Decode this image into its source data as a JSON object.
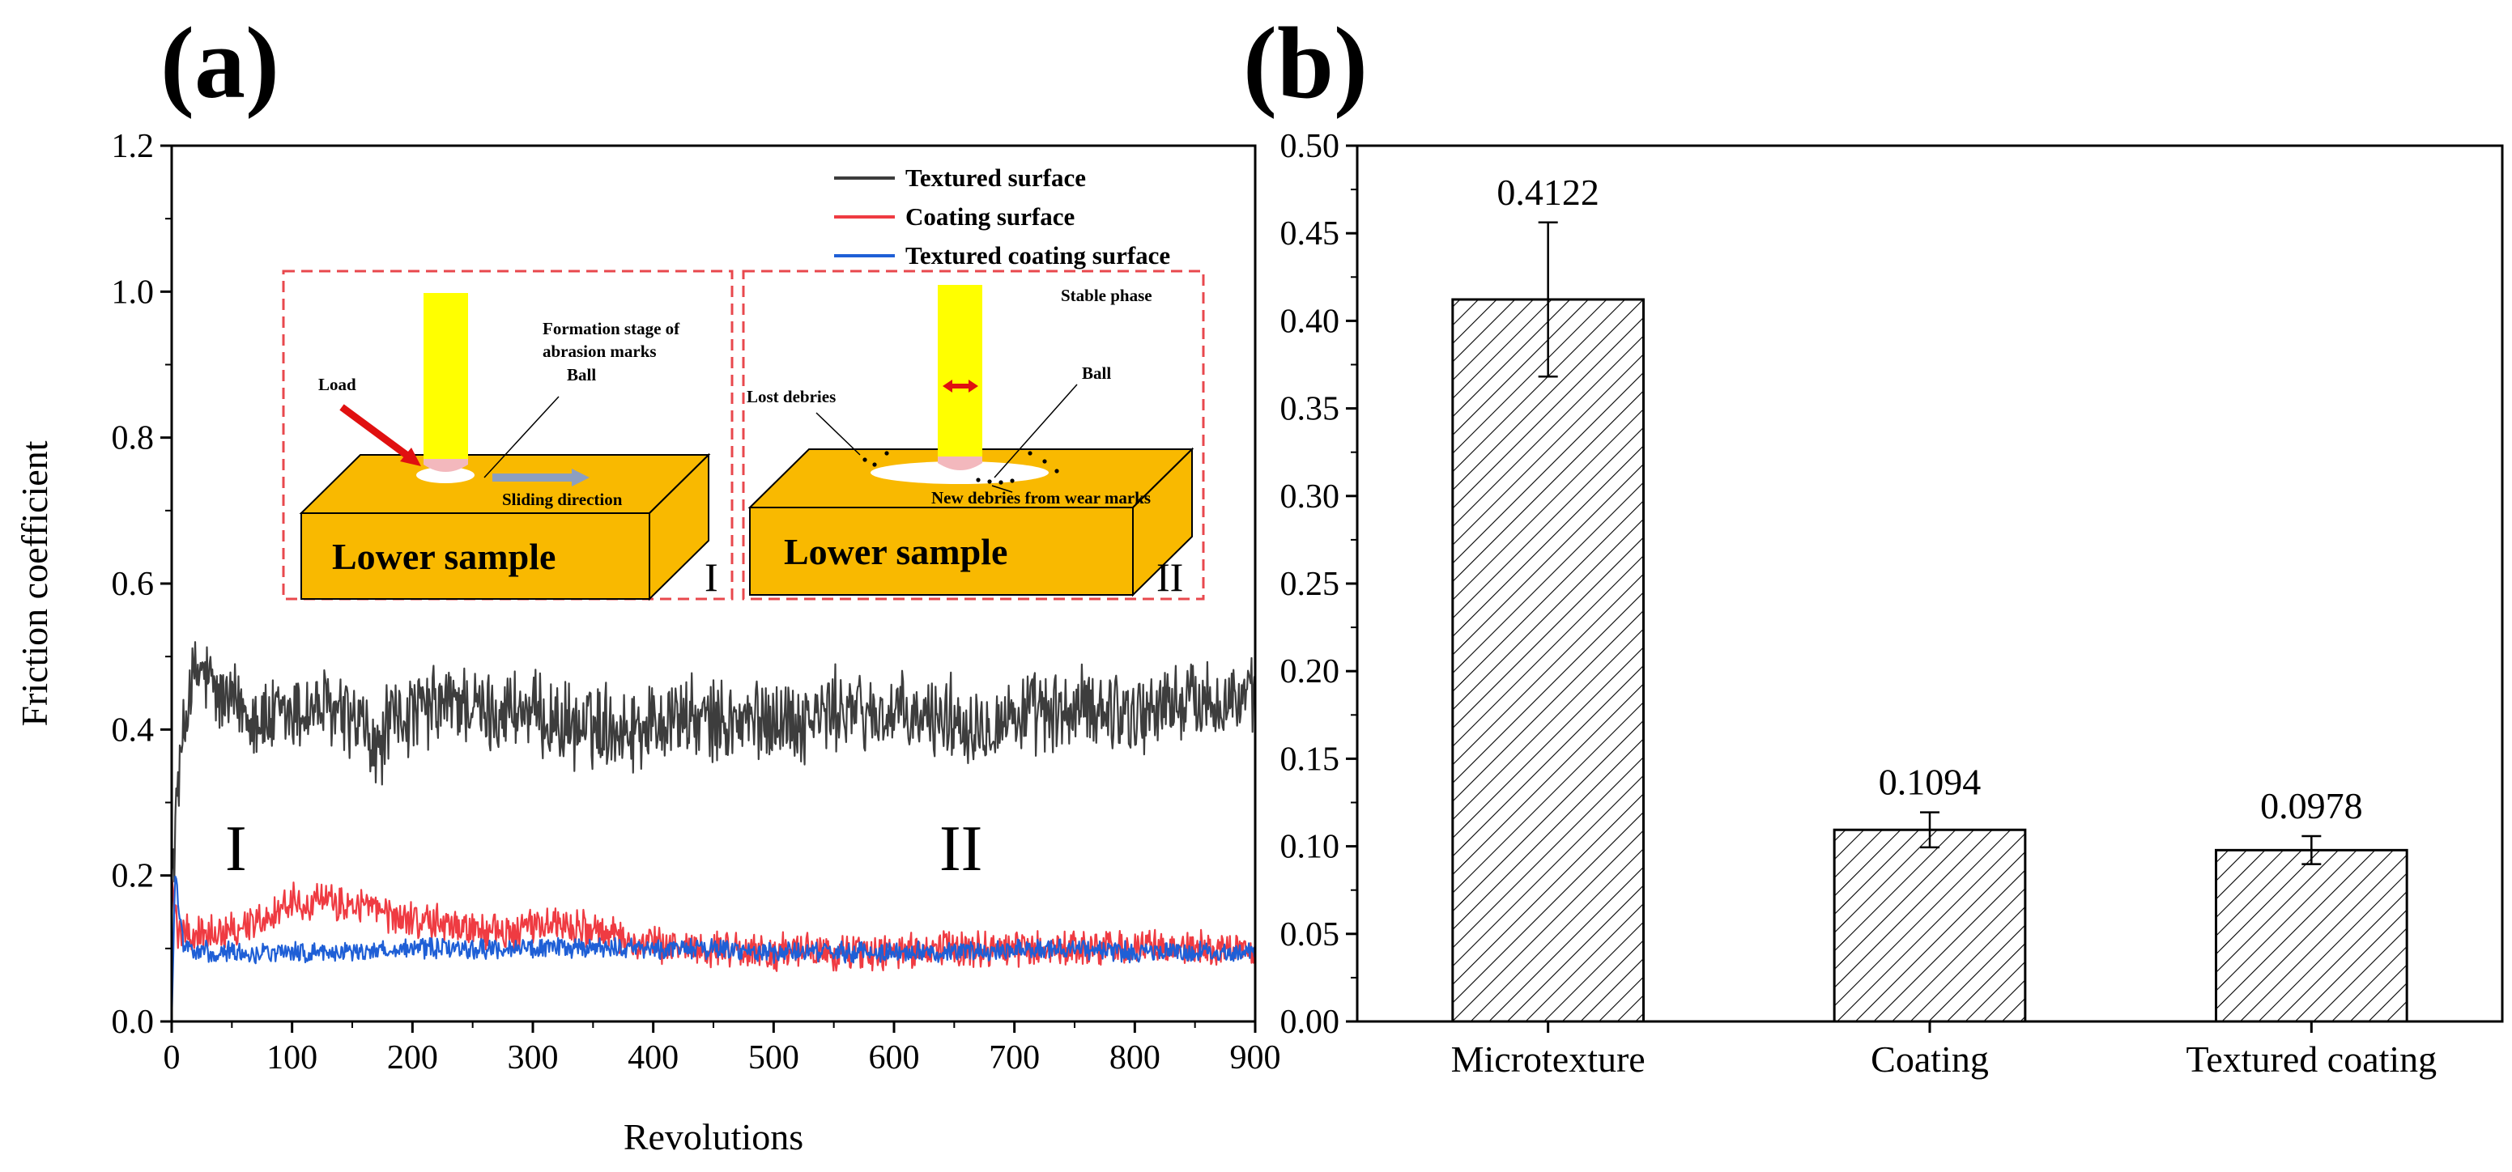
{
  "panels": {
    "a": "(a)",
    "b": "(b)"
  },
  "colors": {
    "textured": "#3d3d3d",
    "coating": "#ef3b42",
    "textured_coating": "#1f5fd6",
    "inset_border": "#e8484d",
    "block": "#f9b900",
    "rod": "#ffff00",
    "ball": "#f3b8bd",
    "arrow": "#e01010",
    "slide_arrow": "#8c9fc0"
  },
  "inset": {
    "left": {
      "load": "Load",
      "formation_1": "Formation stage of",
      "formation_2": "abrasion marks",
      "ball": "Ball",
      "sliding": "Sliding direction",
      "block": "Lower sample",
      "roman": "I"
    },
    "right": {
      "stable": "Stable phase",
      "lost": "Lost debries",
      "ball": "Ball",
      "new_debris": "New debries from wear marks",
      "block": "Lower sample",
      "roman": "II"
    }
  },
  "region_labels": {
    "stage1": "I",
    "stage2": "II"
  },
  "chart_data": [
    {
      "type": "line",
      "xlabel": "Revolutions",
      "ylabel": "Friction coefficient",
      "xlim": [
        0,
        900
      ],
      "ylim": [
        0,
        1.2
      ],
      "xticks": [
        "0",
        "100",
        "200",
        "300",
        "400",
        "500",
        "600",
        "700",
        "800",
        "900"
      ],
      "yticks": [
        "0.0",
        "0.2",
        "0.4",
        "0.6",
        "0.8",
        "1.0",
        "1.2"
      ],
      "legend": [
        "Textured surface",
        "Coating surface",
        "Textured coating surface"
      ],
      "series": [
        {
          "name": "Textured surface",
          "x": [
            0,
            5,
            15,
            25,
            40,
            60,
            80,
            100,
            120,
            140,
            160,
            170,
            180,
            200,
            220,
            240,
            260,
            280,
            300,
            320,
            340,
            360,
            380,
            400,
            420,
            440,
            460,
            480,
            500,
            520,
            540,
            560,
            580,
            600,
            620,
            640,
            660,
            680,
            700,
            720,
            740,
            760,
            780,
            800,
            820,
            840,
            860,
            880,
            900
          ],
          "y": [
            0.2,
            0.32,
            0.46,
            0.48,
            0.44,
            0.43,
            0.41,
            0.42,
            0.43,
            0.42,
            0.4,
            0.36,
            0.41,
            0.42,
            0.43,
            0.44,
            0.42,
            0.43,
            0.42,
            0.41,
            0.4,
            0.41,
            0.4,
            0.41,
            0.42,
            0.41,
            0.41,
            0.41,
            0.42,
            0.41,
            0.42,
            0.43,
            0.42,
            0.42,
            0.41,
            0.42,
            0.41,
            0.41,
            0.42,
            0.42,
            0.42,
            0.43,
            0.43,
            0.42,
            0.43,
            0.44,
            0.44,
            0.44,
            0.44
          ],
          "noise": 0.05
        },
        {
          "name": "Coating surface",
          "x": [
            0,
            5,
            20,
            40,
            60,
            80,
            100,
            120,
            140,
            160,
            180,
            200,
            220,
            240,
            260,
            280,
            300,
            320,
            340,
            360,
            380,
            400,
            450,
            500,
            550,
            600,
            650,
            700,
            750,
            800,
            850,
            900
          ],
          "y": [
            0.2,
            0.12,
            0.12,
            0.125,
            0.13,
            0.145,
            0.165,
            0.165,
            0.16,
            0.16,
            0.145,
            0.14,
            0.135,
            0.13,
            0.125,
            0.12,
            0.13,
            0.135,
            0.13,
            0.12,
            0.11,
            0.105,
            0.1,
            0.095,
            0.095,
            0.095,
            0.1,
            0.1,
            0.1,
            0.1,
            0.1,
            0.1
          ],
          "noise": 0.022
        },
        {
          "name": "Textured coating surface",
          "x": [
            0,
            3,
            10,
            30,
            60,
            100,
            150,
            200,
            250,
            300,
            350,
            400,
            450,
            500,
            550,
            600,
            650,
            700,
            750,
            800,
            850,
            900
          ],
          "y": [
            0.0,
            0.2,
            0.1,
            0.095,
            0.095,
            0.095,
            0.095,
            0.1,
            0.1,
            0.1,
            0.1,
            0.1,
            0.1,
            0.095,
            0.095,
            0.095,
            0.095,
            0.1,
            0.1,
            0.095,
            0.095,
            0.095
          ],
          "noise": 0.012
        }
      ]
    },
    {
      "type": "bar",
      "categories": [
        "Microtexture",
        "Coating",
        "Textured coating"
      ],
      "values": [
        0.4122,
        0.1094,
        0.0978
      ],
      "value_labels": [
        "0.4122",
        "0.1094",
        "0.0978"
      ],
      "errors": [
        0.044,
        0.01,
        0.008
      ],
      "ylim": [
        0,
        0.5
      ],
      "yticks": [
        "0.00",
        "0.05",
        "0.10",
        "0.15",
        "0.20",
        "0.25",
        "0.30",
        "0.35",
        "0.40",
        "0.45",
        "0.50"
      ],
      "xlabel": "",
      "ylabel": "",
      "hatch": "diagonal"
    }
  ]
}
